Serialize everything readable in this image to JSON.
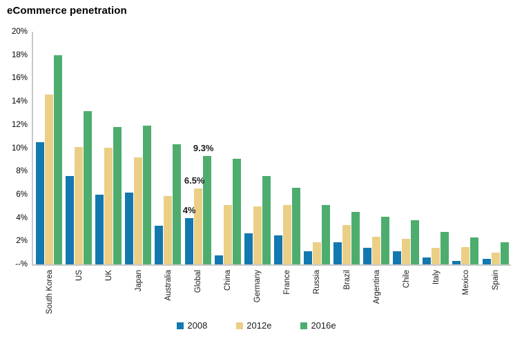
{
  "title": "eCommerce penetration",
  "chart_data": {
    "type": "bar",
    "title": "eCommerce penetration",
    "categories": [
      "South Korea",
      "US",
      "UK",
      "Japan",
      "Australia",
      "Global",
      "China",
      "Germany",
      "France",
      "Russia",
      "Brazil",
      "Argentina",
      "Chile",
      "Italy",
      "Mexico",
      "Spain"
    ],
    "series": [
      {
        "name": "2008",
        "color": "#1478b0",
        "values": [
          10.5,
          7.6,
          6.0,
          6.2,
          3.3,
          4.0,
          0.8,
          2.7,
          2.5,
          1.1,
          1.9,
          1.4,
          1.1,
          0.6,
          0.3,
          0.5
        ]
      },
      {
        "name": "2012e",
        "color": "#ebcf87",
        "values": [
          14.6,
          10.1,
          10.0,
          9.2,
          5.9,
          6.5,
          5.1,
          5.0,
          5.1,
          1.9,
          3.4,
          2.4,
          2.2,
          1.4,
          1.5,
          1.0
        ]
      },
      {
        "name": "2016e",
        "color": "#4ead6e",
        "values": [
          18.0,
          13.2,
          11.8,
          11.9,
          10.3,
          9.3,
          9.1,
          7.6,
          6.6,
          5.1,
          4.5,
          4.1,
          3.8,
          2.8,
          2.3,
          1.9
        ]
      }
    ],
    "xlabel": "",
    "ylabel": "",
    "ylim": [
      0,
      20
    ],
    "yticks": [
      {
        "value": 20,
        "label": "20%"
      },
      {
        "value": 18,
        "label": "18%"
      },
      {
        "value": 16,
        "label": "16%"
      },
      {
        "value": 14,
        "label": "14%"
      },
      {
        "value": 12,
        "label": "12%"
      },
      {
        "value": 10,
        "label": "10%"
      },
      {
        "value": 8,
        "label": "8%"
      },
      {
        "value": 6,
        "label": "6%"
      },
      {
        "value": 4,
        "label": "4%"
      },
      {
        "value": 2,
        "label": "2%"
      },
      {
        "value": 0,
        "label": "--%"
      }
    ],
    "grid": false,
    "legend_position": "bottom",
    "annotations": [
      {
        "text": "4%",
        "category": "Global",
        "series": "2008"
      },
      {
        "text": "6.5%",
        "category": "Global",
        "series": "2012e"
      },
      {
        "text": "9.3%",
        "category": "Global",
        "series": "2016e"
      }
    ]
  },
  "colors": {
    "axis": "#c8c8c8",
    "text": "#1a1a1a",
    "blue": "#1478b0",
    "tan": "#ebcf87",
    "green": "#4ead6e"
  }
}
